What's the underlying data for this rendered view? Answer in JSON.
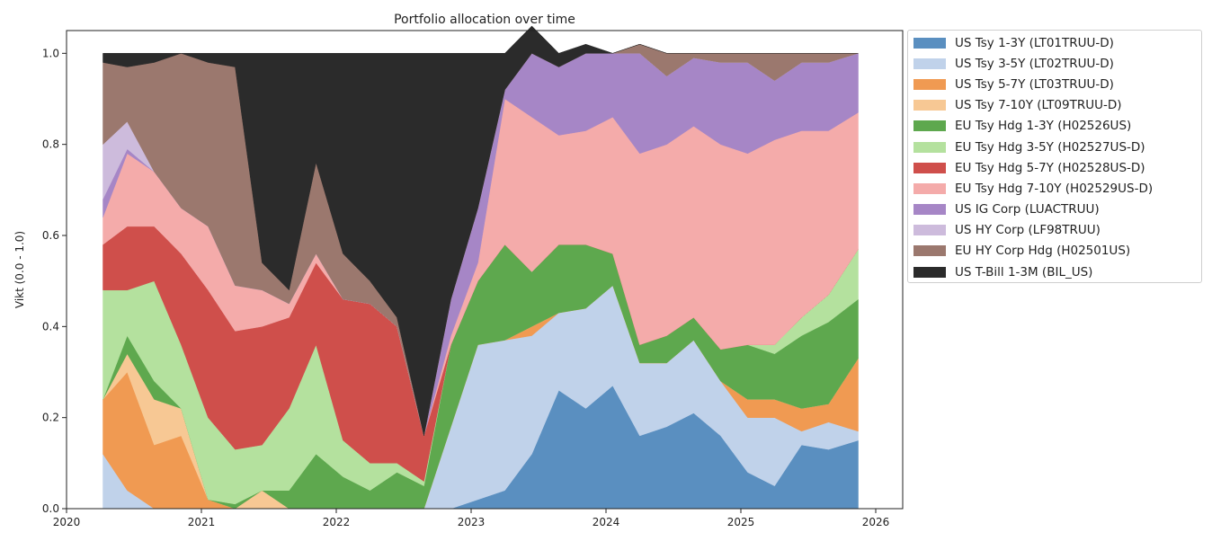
{
  "chart_data": {
    "type": "area",
    "stacked": true,
    "title": "Portfolio allocation over time",
    "xlabel": "",
    "ylabel": "Vikt (0.0 - 1.0)",
    "xlim": [
      2020.0,
      2026.2
    ],
    "ylim": [
      0.0,
      1.05
    ],
    "x_ticks": [
      "2020",
      "2021",
      "2022",
      "2023",
      "2024",
      "2025",
      "2026"
    ],
    "y_ticks": [
      "0.0",
      "0.2",
      "0.4",
      "0.6",
      "0.8",
      "1.0"
    ],
    "legend_position": "outside-right",
    "x": [
      2020.27,
      2020.45,
      2020.65,
      2020.85,
      2021.05,
      2021.25,
      2021.45,
      2021.65,
      2021.85,
      2022.05,
      2022.25,
      2022.45,
      2022.65,
      2022.85,
      2023.05,
      2023.25,
      2023.45,
      2023.65,
      2023.85,
      2024.05,
      2024.25,
      2024.45,
      2024.65,
      2024.85,
      2025.05,
      2025.25,
      2025.45,
      2025.65,
      2025.87
    ],
    "series": [
      {
        "name": "US Tsy 1-3Y (LT01TRUU-D)",
        "color": "#5a8fc0",
        "values": [
          0,
          0,
          0,
          0,
          0,
          0,
          0,
          0,
          0,
          0,
          0,
          0,
          0,
          0,
          0.02,
          0.04,
          0.12,
          0.26,
          0.22,
          0.27,
          0.16,
          0.18,
          0.21,
          0.16,
          0.08,
          0.05,
          0.14,
          0.13,
          0.15
        ]
      },
      {
        "name": "US Tsy 3-5Y (LT02TRUU-D)",
        "color": "#c0d2ea",
        "values": [
          0.12,
          0.04,
          0,
          0,
          0,
          0,
          0,
          0,
          0,
          0,
          0,
          0,
          0,
          0.18,
          0.34,
          0.33,
          0.26,
          0.17,
          0.22,
          0.22,
          0.16,
          0.14,
          0.16,
          0.12,
          0.12,
          0.15,
          0.03,
          0.06,
          0.02
        ]
      },
      {
        "name": "US Tsy 5-7Y (LT03TRUU-D)",
        "color": "#f09a52",
        "values": [
          0.12,
          0.26,
          0.14,
          0.16,
          0.02,
          0,
          0,
          0,
          0,
          0,
          0,
          0,
          0,
          0,
          0,
          0,
          0.02,
          0,
          0,
          0,
          0,
          0,
          0,
          0,
          0.04,
          0.04,
          0.05,
          0.04,
          0.16
        ]
      },
      {
        "name": "US Tsy 7-10Y (LT09TRUU-D)",
        "color": "#f7c894",
        "values": [
          0,
          0.04,
          0.1,
          0.06,
          0,
          0,
          0.04,
          0,
          0,
          0,
          0,
          0,
          0,
          0,
          0,
          0,
          0,
          0,
          0,
          0,
          0,
          0,
          0,
          0,
          0,
          0,
          0,
          0,
          0
        ]
      },
      {
        "name": "EU Tsy Hdg 1-3Y (H02526US)",
        "color": "#5ea84e",
        "values": [
          0,
          0.04,
          0.04,
          0,
          0,
          0.01,
          0,
          0.04,
          0.12,
          0.07,
          0.04,
          0.08,
          0.05,
          0.18,
          0.14,
          0.21,
          0.12,
          0.15,
          0.14,
          0.07,
          0.04,
          0.06,
          0.05,
          0.07,
          0.12,
          0.1,
          0.16,
          0.18,
          0.13
        ]
      },
      {
        "name": "EU Tsy Hdg 3-5Y (H02527US-D)",
        "color": "#b4e19e",
        "values": [
          0.24,
          0.1,
          0.22,
          0.14,
          0.18,
          0.12,
          0.1,
          0.18,
          0.24,
          0.08,
          0.06,
          0.02,
          0.01,
          0,
          0,
          0,
          0,
          0,
          0,
          0,
          0,
          0,
          0,
          0,
          0,
          0.02,
          0.04,
          0.06,
          0.11
        ]
      },
      {
        "name": "EU Tsy Hdg 5-7Y (H02528US-D)",
        "color": "#cf4f4b",
        "values": [
          0.1,
          0.14,
          0.12,
          0.2,
          0.28,
          0.26,
          0.26,
          0.2,
          0.18,
          0.31,
          0.35,
          0.3,
          0.1,
          0,
          0,
          0,
          0,
          0,
          0,
          0,
          0,
          0,
          0,
          0,
          0,
          0,
          0,
          0,
          0
        ]
      },
      {
        "name": "EU Tsy Hdg 7-10Y (H02529US-D)",
        "color": "#f4abaa",
        "values": [
          0.06,
          0.16,
          0.12,
          0.1,
          0.14,
          0.1,
          0.08,
          0.03,
          0.02,
          0,
          0,
          0,
          0,
          0.02,
          0.04,
          0.32,
          0.34,
          0.24,
          0.25,
          0.3,
          0.42,
          0.42,
          0.42,
          0.45,
          0.42,
          0.45,
          0.41,
          0.36,
          0.3
        ]
      },
      {
        "name": "US IG Corp (LUACTRUU)",
        "color": "#a686c6",
        "values": [
          0.04,
          0.01,
          0,
          0,
          0,
          0,
          0,
          0,
          0,
          0,
          0,
          0,
          0,
          0.08,
          0.12,
          0.02,
          0.14,
          0.15,
          0.17,
          0.14,
          0.22,
          0.15,
          0.15,
          0.18,
          0.2,
          0.13,
          0.15,
          0.15,
          0.13
        ]
      },
      {
        "name": "US HY Corp (LF98TRUU)",
        "color": "#cdbbdc",
        "values": [
          0.12,
          0.06,
          0,
          0,
          0,
          0,
          0,
          0,
          0,
          0,
          0,
          0,
          0,
          0,
          0,
          0,
          0,
          0,
          0,
          0,
          0,
          0,
          0,
          0,
          0,
          0,
          0,
          0,
          0
        ]
      },
      {
        "name": "EU HY Corp Hdg (H02501US)",
        "color": "#9b786e",
        "values": [
          0.18,
          0.12,
          0.24,
          0.34,
          0.36,
          0.48,
          0.06,
          0.03,
          0.2,
          0.1,
          0.05,
          0.02,
          0,
          0,
          0,
          0,
          0,
          0,
          0,
          0,
          0.02,
          0.05,
          0.01,
          0.02,
          0.02,
          0.06,
          0.02,
          0.02,
          0
        ]
      },
      {
        "name": "US T-Bill 1-3M (BIL_US)",
        "color": "#2b2b2b",
        "values": [
          0.02,
          0.03,
          0.02,
          0,
          0.02,
          0.03,
          0.46,
          0.52,
          0.24,
          0.44,
          0.5,
          0.58,
          0.84,
          0.54,
          0.34,
          0.08,
          0.06,
          0.03,
          0.02,
          0,
          0,
          0,
          0,
          0,
          0,
          0,
          0,
          0,
          0
        ]
      }
    ]
  }
}
